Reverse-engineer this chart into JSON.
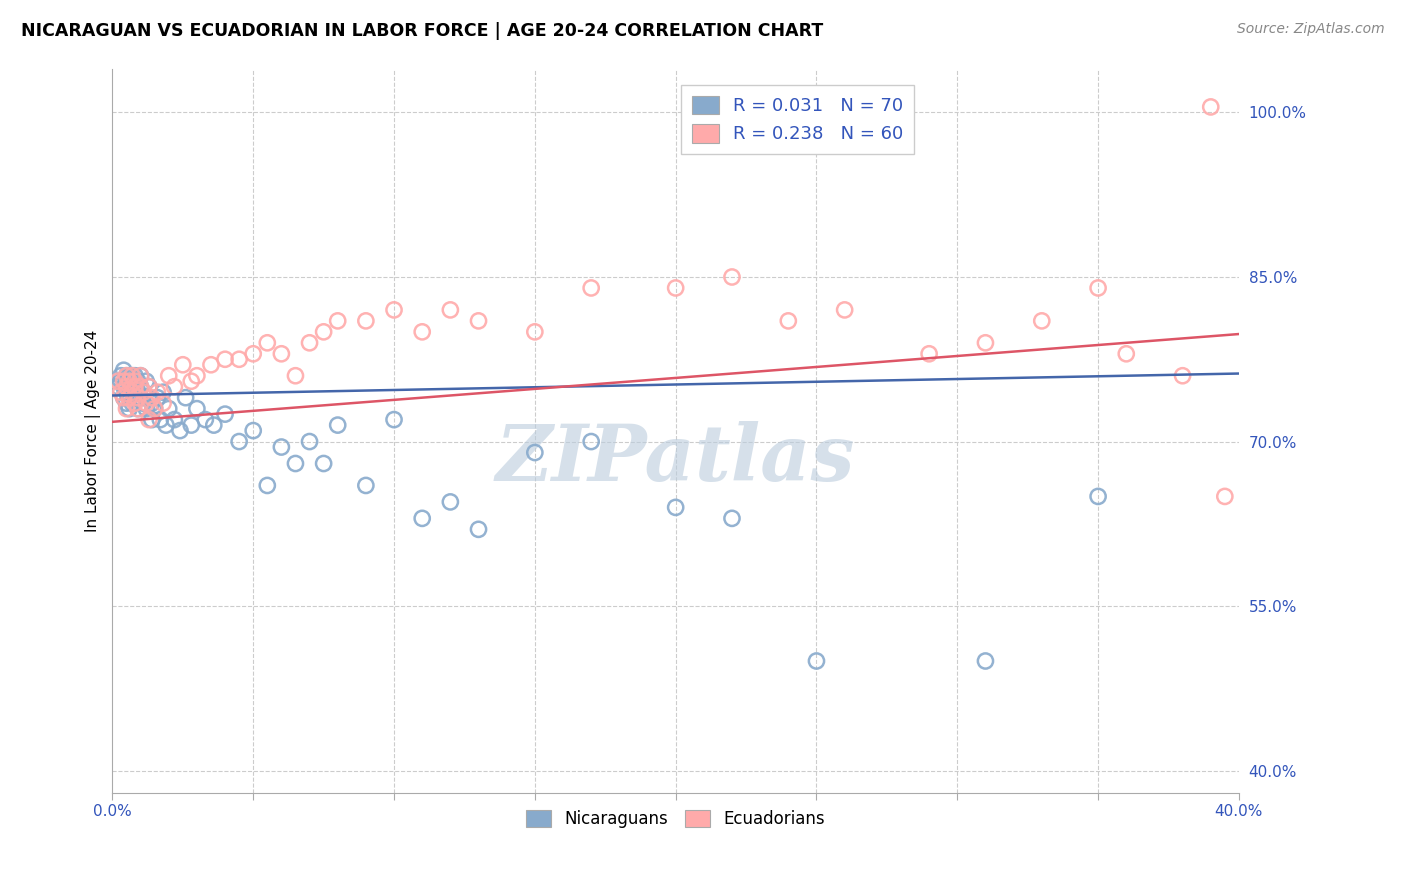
{
  "title": "NICARAGUAN VS ECUADORIAN IN LABOR FORCE | AGE 20-24 CORRELATION CHART",
  "source": "Source: ZipAtlas.com",
  "ylabel": "In Labor Force | Age 20-24",
  "yticks_pct": [
    40.0,
    55.0,
    70.0,
    85.0,
    100.0
  ],
  "xlim": [
    0.0,
    0.4
  ],
  "ylim": [
    0.38,
    1.04
  ],
  "blue_color": "#88AACC",
  "pink_color": "#FFAAAA",
  "blue_edge_color": "#6688BB",
  "pink_edge_color": "#DD8888",
  "blue_line_color": "#4466AA",
  "pink_line_color": "#DD5566",
  "legend_text_color": "#3355BB",
  "watermark_color": "#BBCCDD",
  "R_blue": 0.031,
  "N_blue": 70,
  "R_pink": 0.238,
  "N_pink": 60,
  "blue_intercept": 0.742,
  "blue_slope": 0.05,
  "pink_intercept": 0.718,
  "pink_slope": 0.2,
  "blue_x": [
    0.002,
    0.003,
    0.003,
    0.004,
    0.004,
    0.004,
    0.005,
    0.005,
    0.005,
    0.005,
    0.006,
    0.006,
    0.006,
    0.006,
    0.007,
    0.007,
    0.007,
    0.007,
    0.008,
    0.008,
    0.008,
    0.008,
    0.009,
    0.009,
    0.009,
    0.01,
    0.01,
    0.01,
    0.011,
    0.011,
    0.012,
    0.012,
    0.013,
    0.013,
    0.014,
    0.014,
    0.015,
    0.016,
    0.017,
    0.018,
    0.019,
    0.02,
    0.022,
    0.024,
    0.026,
    0.028,
    0.03,
    0.033,
    0.036,
    0.04,
    0.045,
    0.05,
    0.055,
    0.06,
    0.065,
    0.07,
    0.075,
    0.08,
    0.09,
    0.1,
    0.11,
    0.12,
    0.13,
    0.15,
    0.17,
    0.2,
    0.22,
    0.25,
    0.31,
    0.35
  ],
  "blue_y": [
    0.75,
    0.755,
    0.76,
    0.74,
    0.75,
    0.765,
    0.75,
    0.76,
    0.735,
    0.745,
    0.755,
    0.76,
    0.74,
    0.73,
    0.75,
    0.76,
    0.735,
    0.745,
    0.755,
    0.75,
    0.74,
    0.76,
    0.745,
    0.73,
    0.755,
    0.74,
    0.75,
    0.76,
    0.735,
    0.745,
    0.73,
    0.755,
    0.74,
    0.75,
    0.72,
    0.735,
    0.73,
    0.74,
    0.72,
    0.745,
    0.715,
    0.73,
    0.72,
    0.71,
    0.74,
    0.715,
    0.73,
    0.72,
    0.715,
    0.725,
    0.7,
    0.71,
    0.66,
    0.695,
    0.68,
    0.7,
    0.68,
    0.715,
    0.66,
    0.72,
    0.63,
    0.645,
    0.62,
    0.69,
    0.7,
    0.64,
    0.63,
    0.5,
    0.5,
    0.65
  ],
  "pink_x": [
    0.002,
    0.003,
    0.004,
    0.004,
    0.005,
    0.005,
    0.005,
    0.006,
    0.006,
    0.007,
    0.007,
    0.008,
    0.008,
    0.008,
    0.009,
    0.009,
    0.01,
    0.01,
    0.011,
    0.012,
    0.013,
    0.013,
    0.014,
    0.015,
    0.016,
    0.018,
    0.02,
    0.022,
    0.025,
    0.028,
    0.03,
    0.035,
    0.04,
    0.045,
    0.05,
    0.055,
    0.06,
    0.065,
    0.07,
    0.075,
    0.08,
    0.09,
    0.1,
    0.11,
    0.12,
    0.13,
    0.15,
    0.17,
    0.2,
    0.22,
    0.24,
    0.26,
    0.29,
    0.31,
    0.33,
    0.35,
    0.36,
    0.38,
    0.39,
    0.395
  ],
  "pink_y": [
    0.755,
    0.745,
    0.755,
    0.74,
    0.76,
    0.73,
    0.75,
    0.755,
    0.74,
    0.745,
    0.76,
    0.75,
    0.735,
    0.755,
    0.74,
    0.73,
    0.75,
    0.76,
    0.745,
    0.735,
    0.75,
    0.72,
    0.74,
    0.73,
    0.745,
    0.735,
    0.76,
    0.75,
    0.77,
    0.755,
    0.76,
    0.77,
    0.775,
    0.775,
    0.78,
    0.79,
    0.78,
    0.76,
    0.79,
    0.8,
    0.81,
    0.81,
    0.82,
    0.8,
    0.82,
    0.81,
    0.8,
    0.84,
    0.84,
    0.85,
    0.81,
    0.82,
    0.78,
    0.79,
    0.81,
    0.84,
    0.78,
    0.76,
    1.005,
    0.65
  ]
}
